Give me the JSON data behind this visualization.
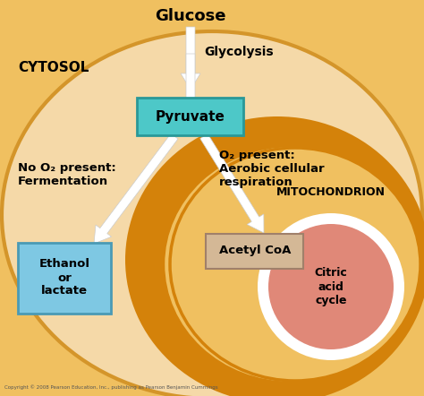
{
  "bg_outer_color": "#F0C060",
  "cytosol_color": "#F5D9A8",
  "cytosol_edge": "#D4952A",
  "mito_outer_color": "#D4820A",
  "mito_inner_color": "#F0C060",
  "mito_inner_edge": "#D4820A",
  "pyruvate_box_color": "#4DC8C8",
  "pyruvate_box_edge": "#2A9898",
  "ethanol_box_color": "#7EC8E3",
  "ethanol_box_edge": "#4A9AB5",
  "acetyl_box_color": "#D4B896",
  "acetyl_box_edge": "#A0806A",
  "citric_circle_color": "#E08878",
  "citric_ring_color": "white",
  "arrow_color": "white",
  "text_color": "black",
  "title": "Glucose",
  "glycolysis_label": "Glycolysis",
  "cytosol_label": "CYTOSOL",
  "mito_label": "MITOCHONDRION",
  "pyruvate_label": "Pyruvate",
  "ethanol_label": "Ethanol\nor\nlactate",
  "acetyl_label": "Acetyl CoA",
  "citric_label": "Citric\nacid\ncycle",
  "no_o2_label": "No O₂ present:\nFermentation",
  "o2_label": "O₂ present:\nAerobic cellular\nrespiration",
  "copyright": "Copyright © 2008 Pearson Education, Inc., publishing as Pearson Benjamin Cummings"
}
